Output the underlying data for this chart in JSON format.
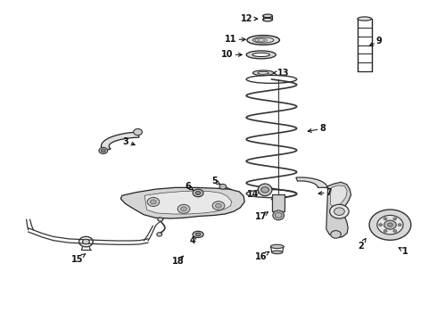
{
  "bg_color": "#ffffff",
  "fig_width": 4.9,
  "fig_height": 3.6,
  "dpi": 100,
  "label_color": "#111111",
  "arrow_color": "#111111",
  "label_fontsize": 7.0,
  "label_fontweight": "bold",
  "labels_data": {
    "12": {
      "lpos": [
        0.565,
        0.945
      ],
      "tpos": [
        0.598,
        0.945
      ]
    },
    "11": {
      "lpos": [
        0.528,
        0.88
      ],
      "tpos": [
        0.57,
        0.88
      ]
    },
    "10": {
      "lpos": [
        0.52,
        0.832
      ],
      "tpos": [
        0.562,
        0.832
      ]
    },
    "13": {
      "lpos": [
        0.65,
        0.775
      ],
      "tpos": [
        0.618,
        0.775
      ]
    },
    "9": {
      "lpos": [
        0.87,
        0.875
      ],
      "tpos": [
        0.84,
        0.855
      ]
    },
    "8": {
      "lpos": [
        0.74,
        0.6
      ],
      "tpos": [
        0.698,
        0.59
      ]
    },
    "3": {
      "lpos": [
        0.287,
        0.56
      ],
      "tpos": [
        0.315,
        0.545
      ]
    },
    "5": {
      "lpos": [
        0.492,
        0.435
      ],
      "tpos": [
        0.51,
        0.42
      ]
    },
    "6": {
      "lpos": [
        0.43,
        0.418
      ],
      "tpos": [
        0.448,
        0.402
      ]
    },
    "14": {
      "lpos": [
        0.58,
        0.395
      ],
      "tpos": [
        0.598,
        0.408
      ]
    },
    "7": {
      "lpos": [
        0.755,
        0.4
      ],
      "tpos": [
        0.722,
        0.395
      ]
    },
    "17": {
      "lpos": [
        0.598,
        0.325
      ],
      "tpos": [
        0.616,
        0.34
      ]
    },
    "2": {
      "lpos": [
        0.828,
        0.232
      ],
      "tpos": [
        0.84,
        0.258
      ]
    },
    "1": {
      "lpos": [
        0.93,
        0.215
      ],
      "tpos": [
        0.908,
        0.232
      ]
    },
    "4": {
      "lpos": [
        0.44,
        0.248
      ],
      "tpos": [
        0.45,
        0.268
      ]
    },
    "16": {
      "lpos": [
        0.598,
        0.198
      ],
      "tpos": [
        0.618,
        0.215
      ]
    },
    "15": {
      "lpos": [
        0.175,
        0.19
      ],
      "tpos": [
        0.195,
        0.208
      ]
    },
    "18": {
      "lpos": [
        0.408,
        0.185
      ],
      "tpos": [
        0.42,
        0.202
      ]
    }
  }
}
